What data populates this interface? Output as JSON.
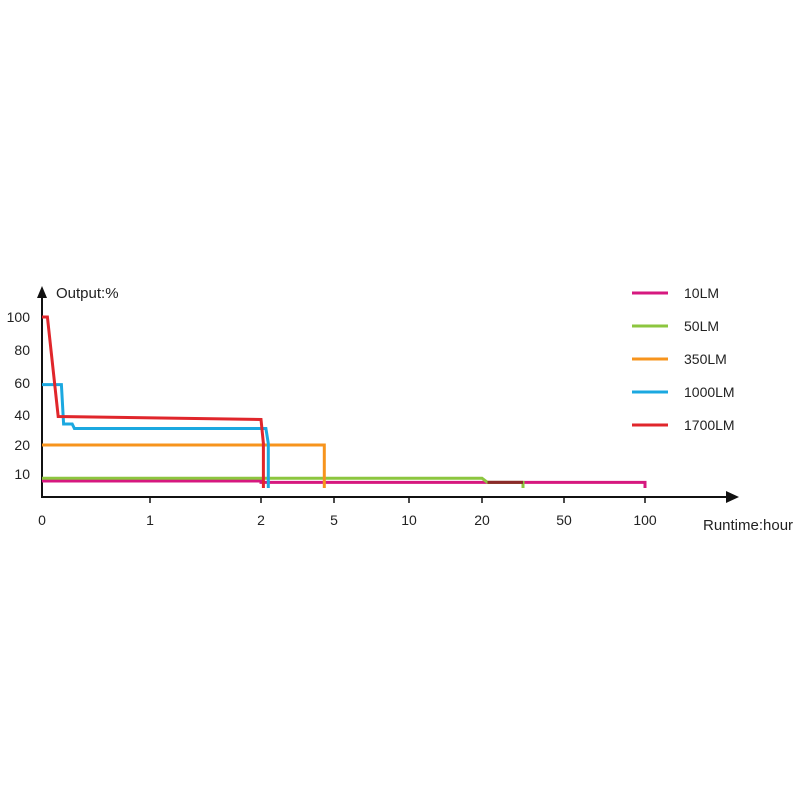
{
  "chart_data": {
    "type": "line",
    "ylabel": "Output:%",
    "xlabel": "Runtime:hour",
    "ylim": [
      0,
      100
    ],
    "y_ticks": [
      "10",
      "20",
      "40",
      "60",
      "80",
      "100"
    ],
    "x_ticks": [
      "0",
      "1",
      "2",
      "5",
      "10",
      "20",
      "50",
      "100"
    ],
    "grid": false,
    "legend_position": "top-right",
    "series": [
      {
        "name": "10LM",
        "color": "#d6187f",
        "points": [
          [
            "0",
            5
          ],
          [
            "2",
            5
          ],
          [
            "2",
            4
          ],
          [
            "100",
            4
          ],
          [
            "100",
            0
          ]
        ]
      },
      {
        "name": "50LM",
        "color": "#8cc63f",
        "points": [
          [
            "0",
            7
          ],
          [
            "20",
            7
          ],
          [
            "22",
            4
          ],
          [
            "35",
            4
          ],
          [
            "35",
            0
          ]
        ]
      },
      {
        "name": "350LM",
        "color": "#f7941d",
        "points": [
          [
            "0",
            20
          ],
          [
            "4.6",
            20
          ],
          [
            "4.6",
            0
          ]
        ]
      },
      {
        "name": "1000LM",
        "color": "#1ba8e0",
        "points": [
          [
            "0",
            59
          ],
          [
            "0.18",
            59
          ],
          [
            "0.2",
            34
          ],
          [
            "0.28",
            34
          ],
          [
            "0.3",
            31
          ],
          [
            "2.2",
            31
          ],
          [
            "2.3",
            21
          ],
          [
            "2.3",
            0
          ]
        ]
      },
      {
        "name": "1700LM",
        "color": "#e0262b",
        "points": [
          [
            "0",
            100
          ],
          [
            "0.05",
            100
          ],
          [
            "0.15",
            39
          ],
          [
            "2",
            37
          ],
          [
            "2.1",
            21
          ],
          [
            "2.1",
            0
          ]
        ]
      }
    ],
    "dark_segment": {
      "color": "#8b2a2a",
      "points": [
        [
          "22",
          4
        ],
        [
          "35",
          4
        ]
      ]
    }
  }
}
